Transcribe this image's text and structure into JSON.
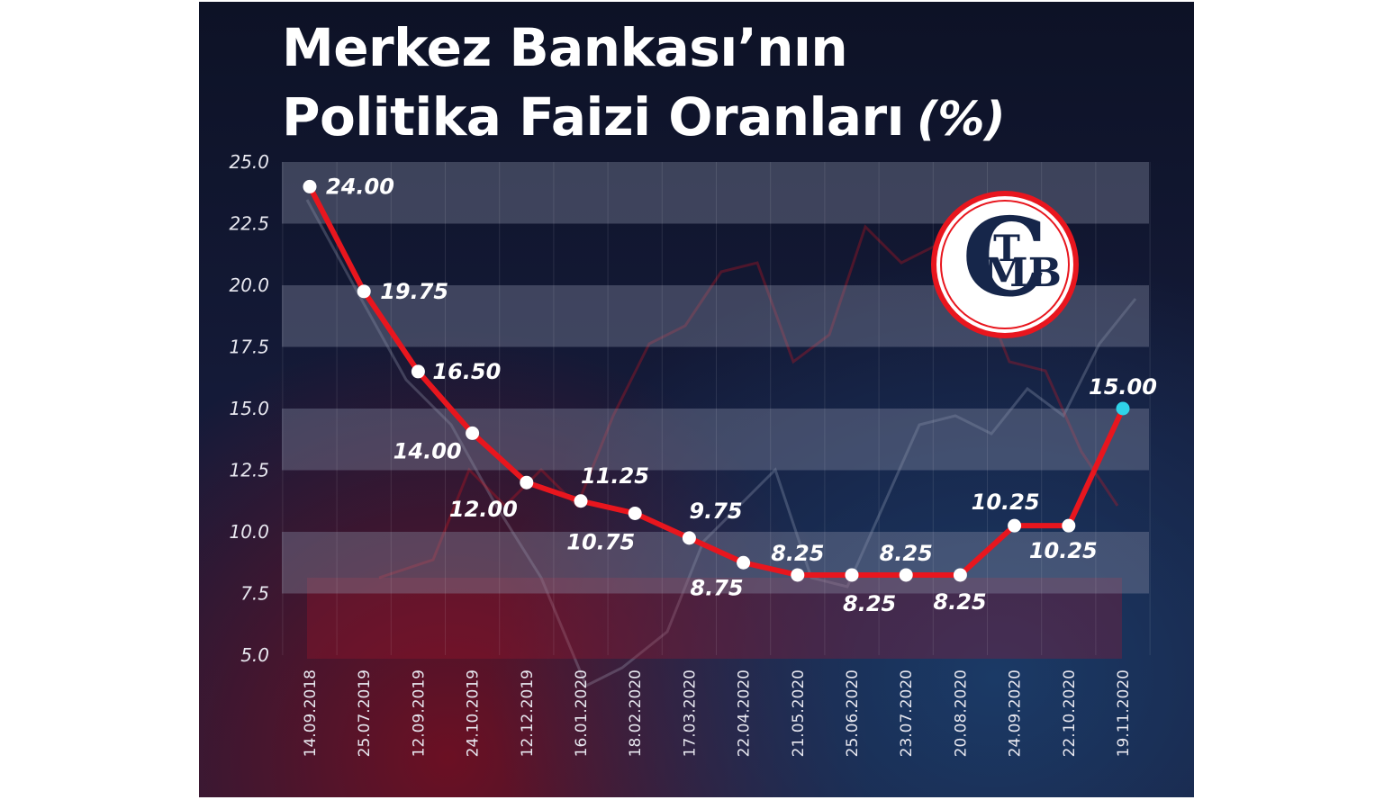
{
  "title": {
    "line1": "Merkez Bankası’nın",
    "line2": "Politika Faizi Oranları",
    "unit": "(%)"
  },
  "logo": {
    "letters": "TCMB",
    "icon": "tcmb-logo-icon"
  },
  "colors": {
    "line": "#e8161e",
    "point": "#ffffff",
    "last_point": "#2fd3e8",
    "band": "#8a8ea6"
  },
  "chart_data": {
    "type": "line",
    "title": "Merkez Bankası’nın Politika Faizi Oranları (%)",
    "xlabel": "",
    "ylabel": "",
    "ylim": [
      5.0,
      25.0
    ],
    "yticks": [
      "25.0",
      "22.5",
      "20.0",
      "17.5",
      "15.0",
      "12.5",
      "10.0",
      "7.5",
      "5.0"
    ],
    "grid": "horizontal bands",
    "categories": [
      "14.09.2018",
      "25.07.2019",
      "12.09.2019",
      "24.10.2019",
      "12.12.2019",
      "16.01.2020",
      "18.02.2020",
      "17.03.2020",
      "22.04.2020",
      "21.05.2020",
      "25.06.2020",
      "23.07.2020",
      "20.08.2020",
      "24.09.2020",
      "22.10.2020",
      "19.11.2020"
    ],
    "values": [
      24.0,
      19.75,
      16.5,
      14.0,
      12.0,
      11.25,
      10.75,
      9.75,
      8.75,
      8.25,
      8.25,
      8.25,
      8.25,
      10.25,
      10.25,
      15.0
    ],
    "labels": [
      "24.00",
      "19.75",
      "16.50",
      "14.00",
      "12.00",
      "11.25",
      "10.75",
      "9.75",
      "8.75",
      "8.25",
      "8.25",
      "8.25",
      "8.25",
      "10.25",
      "10.25",
      "15.00"
    ]
  }
}
